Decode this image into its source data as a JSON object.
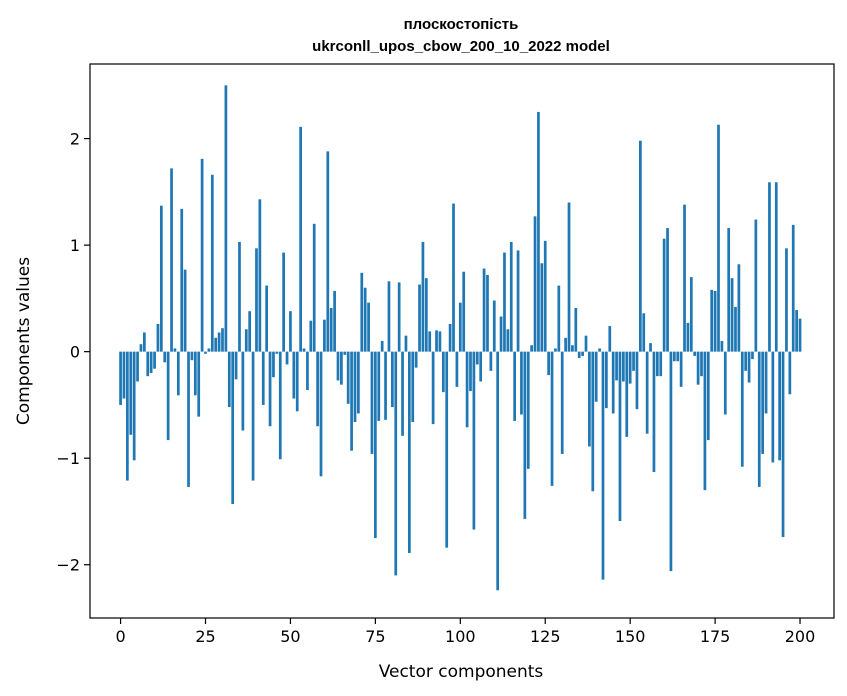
{
  "chart_data": {
    "type": "bar",
    "title_line1": "плоскостопість",
    "title_line2": "ukrconll_upos_cbow_200_10_2022 model",
    "xlabel": "Vector components",
    "ylabel": "Components values",
    "xlim": [
      -9,
      210
    ],
    "ylim": [
      -2.5,
      2.7
    ],
    "xticks": [
      0,
      25,
      50,
      75,
      100,
      125,
      150,
      175,
      200
    ],
    "yticks": [
      -2,
      -1,
      0,
      1,
      2
    ],
    "ytick_labels": [
      "−2",
      "−1",
      "0",
      "1",
      "2"
    ],
    "bar_color": "#1f77b4",
    "values": [
      -0.5,
      -0.44,
      -1.21,
      -0.78,
      -1.02,
      -0.28,
      0.07,
      0.18,
      -0.23,
      -0.2,
      -0.16,
      0.26,
      1.37,
      -0.1,
      -0.83,
      1.72,
      0.03,
      -0.41,
      1.34,
      0.77,
      -1.27,
      -0.08,
      -0.41,
      -0.61,
      1.81,
      -0.02,
      0.03,
      1.66,
      0.13,
      0.18,
      0.22,
      2.5,
      -0.52,
      -1.43,
      -0.26,
      1.03,
      -0.74,
      0.21,
      0.38,
      -1.21,
      0.97,
      1.43,
      -0.5,
      0.62,
      -0.7,
      -0.24,
      -0.02,
      -1.01,
      0.93,
      -0.12,
      0.38,
      -0.44,
      -0.56,
      2.11,
      0.03,
      -0.36,
      0.29,
      1.2,
      -0.7,
      -1.17,
      0.3,
      1.88,
      0.41,
      0.57,
      -0.27,
      -0.31,
      -0.03,
      -0.49,
      -0.93,
      -0.66,
      -0.58,
      0.74,
      0.6,
      0.46,
      -0.96,
      -1.75,
      -0.65,
      0.1,
      -0.64,
      0.66,
      -0.52,
      -2.1,
      0.65,
      -0.79,
      0.15,
      -1.89,
      -0.66,
      -0.15,
      0.63,
      1.03,
      0.69,
      0.19,
      -0.68,
      0.2,
      0.19,
      -0.38,
      -1.84,
      0.26,
      1.39,
      -0.33,
      0.46,
      0.75,
      -0.71,
      -0.37,
      -1.67,
      -0.12,
      -0.28,
      0.78,
      0.72,
      -0.18,
      0.48,
      -2.24,
      0.33,
      0.93,
      0.21,
      1.03,
      -0.65,
      0.95,
      -0.59,
      -1.57,
      -1.1,
      0.06,
      1.27,
      2.25,
      0.83,
      1.04,
      -0.22,
      -1.26,
      0.03,
      0.62,
      -0.96,
      0.13,
      1.4,
      0.06,
      0.41,
      -0.06,
      -0.04,
      0.15,
      -0.89,
      -1.31,
      -0.47,
      0.03,
      -2.14,
      -0.53,
      0.24,
      -0.58,
      -0.27,
      -1.59,
      -0.28,
      -0.8,
      -0.3,
      -0.18,
      -0.54,
      1.98,
      0.36,
      -0.77,
      0.08,
      -1.13,
      -0.23,
      -0.23,
      1.06,
      1.16,
      -2.06,
      -0.09,
      -0.09,
      -0.33,
      1.38,
      0.27,
      0.7,
      -0.04,
      -0.31,
      -0.23,
      -1.3,
      -0.83,
      0.58,
      0.57,
      2.13,
      0.1,
      -0.59,
      1.16,
      0.69,
      0.42,
      0.82,
      -1.08,
      -0.18,
      -0.29,
      -0.07,
      1.24,
      -1.27,
      -0.96,
      -0.58,
      1.59,
      -1.04,
      1.59,
      -1.02,
      -1.74,
      0.97,
      -0.4,
      1.19,
      0.39,
      0.31
    ]
  }
}
